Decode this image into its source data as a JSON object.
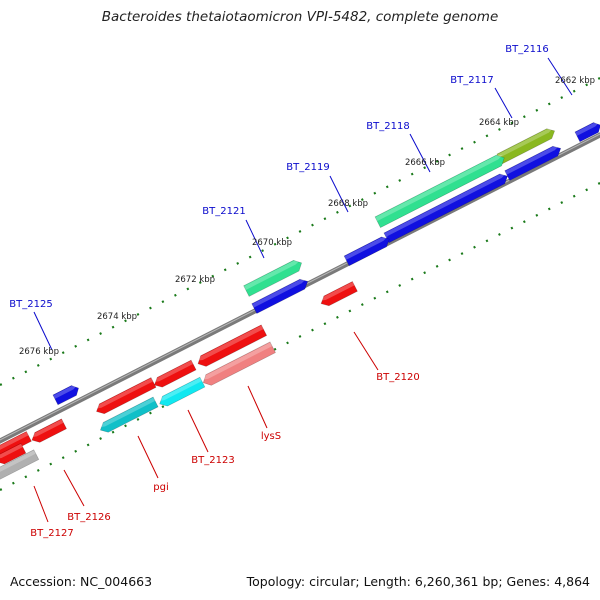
{
  "title": "Bacteroides thetaiotaomicron VPI-5482, complete genome",
  "footer": {
    "accession": "Accession: NC_004663",
    "topology": "Topology: circular; Length: 6,260,361 bp; Genes: 4,864"
  },
  "colors": {
    "backbone": "#808080",
    "forward_label": "#0a0acc",
    "reverse_label": "#cc0000",
    "ticks": "#1a7a1a"
  },
  "kbp_ticks": [
    "2662 kbp",
    "2664 kbp",
    "2666 kbp",
    "2668 kbp",
    "2670 kbp",
    "2672 kbp",
    "2674 kbp",
    "2676 kbp"
  ],
  "genes": [
    {
      "label": "BT_2116",
      "strand": "forward",
      "color": "#1010e0"
    },
    {
      "label": "BT_2117",
      "strand": "forward",
      "color": "#8ab820"
    },
    {
      "label": "",
      "strand": "forward",
      "color": "#1010e0"
    },
    {
      "label": "BT_2118",
      "strand": "forward",
      "color": "#30e090"
    },
    {
      "label": "",
      "strand": "forward",
      "color": "#1010e0"
    },
    {
      "label": "BT_2119",
      "strand": "forward",
      "color": "#1010e0"
    },
    {
      "label": "BT_2121",
      "strand": "forward",
      "color": "#30e090"
    },
    {
      "label": "",
      "strand": "forward",
      "color": "#1010e0"
    },
    {
      "label": "BT_2125",
      "strand": "forward",
      "color": "#1010e0"
    },
    {
      "label": "BT_2120",
      "strand": "reverse",
      "color": "#ee1010"
    },
    {
      "label": "",
      "strand": "reverse",
      "color": "#ee1010"
    },
    {
      "label": "lysS",
      "strand": "reverse",
      "color": "#f08080"
    },
    {
      "label": "",
      "strand": "reverse",
      "color": "#ee1010"
    },
    {
      "label": "BT_2123",
      "strand": "reverse",
      "color": "#10e8f0"
    },
    {
      "label": "",
      "strand": "reverse",
      "color": "#ee1010"
    },
    {
      "label": "pgi",
      "strand": "reverse",
      "color": "#10c0c8"
    },
    {
      "label": "",
      "strand": "reverse",
      "color": "#ee1010"
    },
    {
      "label": "BT_2126",
      "strand": "reverse",
      "color": "#ee1010"
    },
    {
      "label": "",
      "strand": "reverse",
      "color": "#ee1010"
    },
    {
      "label": "BT_2127",
      "strand": "reverse",
      "color": "#b0b0b0"
    }
  ]
}
